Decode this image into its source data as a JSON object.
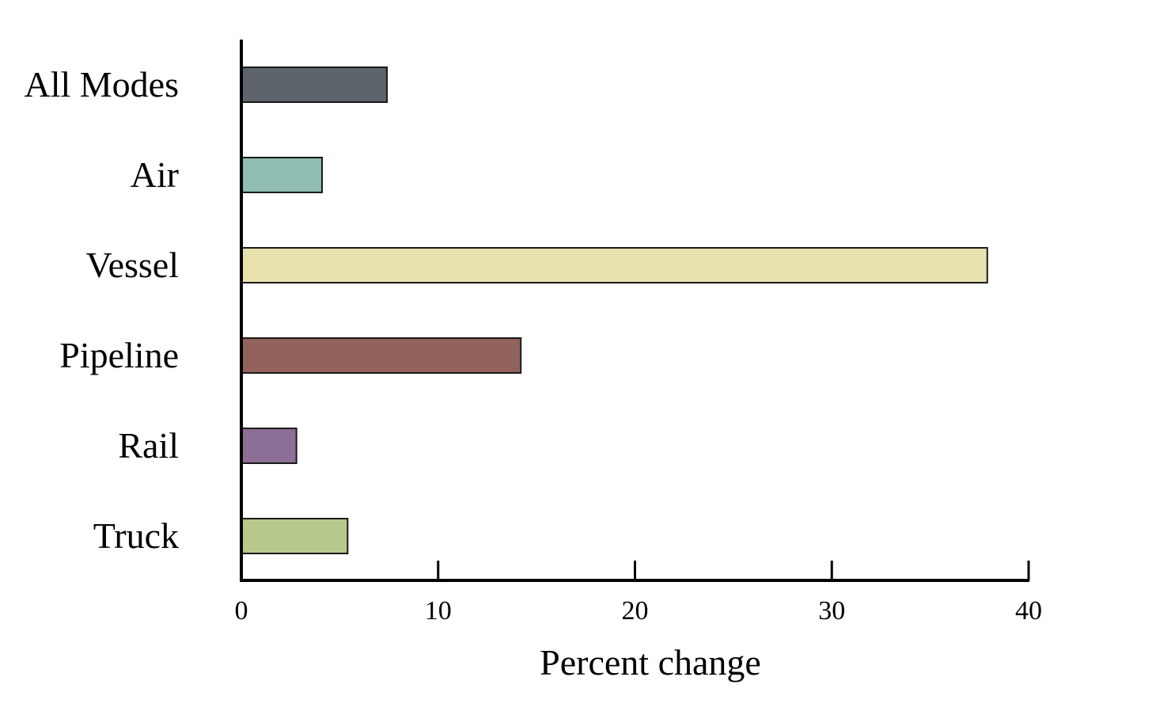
{
  "chart_data": {
    "type": "bar",
    "orientation": "horizontal",
    "categories": [
      "All Modes",
      "Air",
      "Vessel",
      "Pipeline",
      "Rail",
      "Truck"
    ],
    "values": [
      7.4,
      4.1,
      37.9,
      14.2,
      2.8,
      5.4
    ],
    "colors": [
      "#5d646b",
      "#8fbcb3",
      "#e8e2ae",
      "#92625c",
      "#8d6e97",
      "#b7c88c"
    ],
    "xlabel": "Percent change",
    "ylabel": "",
    "xlim": [
      0,
      40
    ],
    "xticks": [
      0,
      10,
      20,
      30,
      40
    ],
    "grid": false
  }
}
